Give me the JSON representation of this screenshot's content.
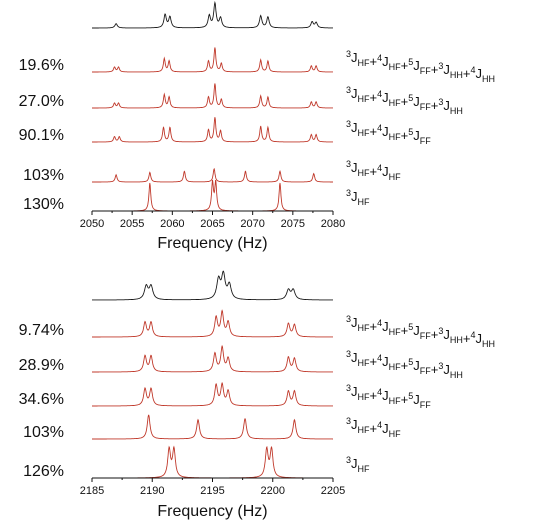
{
  "colors": {
    "experimental": "#1a1a1a",
    "simulated": "#c0392b",
    "axis": "#111111"
  },
  "chart_data": [
    {
      "type": "line",
      "xlabel": "Frequency (Hz)",
      "xlim": [
        2050,
        2080
      ],
      "xticks": [
        "2050",
        "2055",
        "2060",
        "2065",
        "2070",
        "2075",
        "2080"
      ],
      "grid": false,
      "series": [
        {
          "role": "experimental",
          "label": "",
          "coupling": [],
          "peaks": [
            [
              2053.0,
              0.18
            ],
            [
              2059.1,
              0.55
            ],
            [
              2059.7,
              0.45
            ],
            [
              2064.6,
              0.5
            ],
            [
              2065.3,
              1.0
            ],
            [
              2066.0,
              0.4
            ],
            [
              2071.0,
              0.5
            ],
            [
              2071.9,
              0.45
            ],
            [
              2077.4,
              0.25
            ],
            [
              2077.9,
              0.22
            ]
          ]
        },
        {
          "role": "simulated",
          "label": "19.6%",
          "coupling": [
            [
              {
                "s": "3",
                "t": "J",
                "b": "HF"
              },
              {
                "s": "4",
                "t": "J",
                "b": "HF"
              },
              {
                "s": "5",
                "t": "J",
                "b": "FF"
              },
              {
                "s": "3",
                "t": "J",
                "b": "HH"
              },
              {
                "s": "4",
                "t": "J",
                "b": "HH"
              }
            ]
          ],
          "peaks": [
            [
              2052.8,
              0.2
            ],
            [
              2053.3,
              0.2
            ],
            [
              2059.0,
              0.55
            ],
            [
              2059.6,
              0.45
            ],
            [
              2064.5,
              0.45
            ],
            [
              2065.3,
              1.0
            ],
            [
              2066.1,
              0.35
            ],
            [
              2071.0,
              0.5
            ],
            [
              2071.9,
              0.45
            ],
            [
              2077.3,
              0.25
            ],
            [
              2077.9,
              0.25
            ]
          ]
        },
        {
          "role": "simulated",
          "label": "27.0%",
          "coupling": [
            [
              {
                "s": "3",
                "t": "J",
                "b": "HF"
              },
              {
                "s": "4",
                "t": "J",
                "b": "HF"
              },
              {
                "s": "5",
                "t": "J",
                "b": "FF"
              },
              {
                "s": "3",
                "t": "J",
                "b": "HH"
              }
            ]
          ],
          "peaks": [
            [
              2052.8,
              0.2
            ],
            [
              2053.3,
              0.2
            ],
            [
              2059.0,
              0.55
            ],
            [
              2059.6,
              0.45
            ],
            [
              2064.5,
              0.45
            ],
            [
              2065.3,
              1.0
            ],
            [
              2066.1,
              0.35
            ],
            [
              2071.0,
              0.5
            ],
            [
              2071.9,
              0.45
            ],
            [
              2077.3,
              0.25
            ],
            [
              2077.9,
              0.25
            ]
          ]
        },
        {
          "role": "simulated",
          "label": "90.1%",
          "coupling": [
            [
              {
                "s": "3",
                "t": "J",
                "b": "HF"
              },
              {
                "s": "4",
                "t": "J",
                "b": "HF"
              },
              {
                "s": "5",
                "t": "J",
                "b": "FF"
              }
            ]
          ],
          "peaks": [
            [
              2052.8,
              0.22
            ],
            [
              2053.4,
              0.22
            ],
            [
              2058.9,
              0.6
            ],
            [
              2059.7,
              0.6
            ],
            [
              2064.5,
              0.5
            ],
            [
              2065.3,
              1.0
            ],
            [
              2066.0,
              0.45
            ],
            [
              2071.0,
              0.65
            ],
            [
              2071.9,
              0.6
            ],
            [
              2077.3,
              0.3
            ],
            [
              2077.9,
              0.3
            ]
          ]
        },
        {
          "role": "simulated",
          "label": "103%",
          "coupling": [
            [
              {
                "s": "3",
                "t": "J",
                "b": "HF"
              },
              {
                "s": "4",
                "t": "J",
                "b": "HF"
              }
            ]
          ],
          "peaks": [
            [
              2053.0,
              0.3
            ],
            [
              2057.2,
              0.4
            ],
            [
              2061.5,
              0.45
            ],
            [
              2065.2,
              0.55
            ],
            [
              2069.1,
              0.45
            ],
            [
              2073.4,
              0.45
            ],
            [
              2077.6,
              0.35
            ]
          ]
        },
        {
          "role": "simulated",
          "label": "130%",
          "coupling": [
            [
              {
                "s": "3",
                "t": "J",
                "b": "HF"
              }
            ]
          ],
          "peaks": [
            [
              2057.2,
              1.0
            ],
            [
              2065.0,
              1.0
            ],
            [
              2065.4,
              1.0
            ],
            [
              2073.4,
              1.0
            ]
          ]
        }
      ]
    },
    {
      "type": "line",
      "xlabel": "Frequency (Hz)",
      "xlim": [
        2185,
        2205
      ],
      "xticks": [
        "2185",
        "2190",
        "2195",
        "2200",
        "2205"
      ],
      "grid": false,
      "series": [
        {
          "role": "experimental",
          "label": "",
          "coupling": [],
          "peaks": [
            [
              2189.5,
              0.55
            ],
            [
              2189.9,
              0.55
            ],
            [
              2195.5,
              0.8
            ],
            [
              2195.9,
              1.0
            ],
            [
              2196.4,
              0.6
            ],
            [
              2201.3,
              0.4
            ],
            [
              2201.7,
              0.4
            ]
          ]
        },
        {
          "role": "simulated",
          "label": "9.74%",
          "coupling": [
            [
              {
                "s": "3",
                "t": "J",
                "b": "HF"
              },
              {
                "s": "4",
                "t": "J",
                "b": "HF"
              },
              {
                "s": "5",
                "t": "J",
                "b": "FF"
              },
              {
                "s": "3",
                "t": "J",
                "b": "HH"
              },
              {
                "s": "4",
                "t": "J",
                "b": "HH"
              }
            ]
          ],
          "peaks": [
            [
              2189.4,
              0.6
            ],
            [
              2189.9,
              0.6
            ],
            [
              2195.3,
              0.8
            ],
            [
              2195.8,
              1.0
            ],
            [
              2196.3,
              0.6
            ],
            [
              2201.3,
              0.55
            ],
            [
              2201.8,
              0.5
            ]
          ]
        },
        {
          "role": "simulated",
          "label": "28.9%",
          "coupling": [
            [
              {
                "s": "3",
                "t": "J",
                "b": "HF"
              },
              {
                "s": "4",
                "t": "J",
                "b": "HF"
              },
              {
                "s": "5",
                "t": "J",
                "b": "FF"
              },
              {
                "s": "3",
                "t": "J",
                "b": "HH"
              }
            ]
          ],
          "peaks": [
            [
              2189.4,
              0.65
            ],
            [
              2189.9,
              0.65
            ],
            [
              2195.2,
              0.75
            ],
            [
              2195.8,
              1.0
            ],
            [
              2196.3,
              0.55
            ],
            [
              2201.3,
              0.6
            ],
            [
              2201.8,
              0.55
            ]
          ]
        },
        {
          "role": "simulated",
          "label": "34.6%",
          "coupling": [
            [
              {
                "s": "3",
                "t": "J",
                "b": "HF"
              },
              {
                "s": "4",
                "t": "J",
                "b": "HF"
              },
              {
                "s": "5",
                "t": "J",
                "b": "FF"
              }
            ]
          ],
          "peaks": [
            [
              2189.4,
              0.7
            ],
            [
              2189.9,
              0.7
            ],
            [
              2195.3,
              0.85
            ],
            [
              2195.8,
              0.85
            ],
            [
              2196.3,
              0.6
            ],
            [
              2201.3,
              0.6
            ],
            [
              2201.8,
              0.6
            ]
          ]
        },
        {
          "role": "simulated",
          "label": "103%",
          "coupling": [
            [
              {
                "s": "3",
                "t": "J",
                "b": "HF"
              },
              {
                "s": "4",
                "t": "J",
                "b": "HF"
              }
            ]
          ],
          "peaks": [
            [
              2189.7,
              1.0
            ],
            [
              2193.8,
              0.8
            ],
            [
              2197.7,
              0.85
            ],
            [
              2201.8,
              0.8
            ]
          ]
        },
        {
          "role": "simulated",
          "label": "126%",
          "coupling": [
            [
              {
                "s": "3",
                "t": "J",
                "b": "HF"
              }
            ]
          ],
          "peaks": [
            [
              2191.4,
              1.0
            ],
            [
              2191.8,
              1.0
            ],
            [
              2199.5,
              1.0
            ],
            [
              2199.9,
              1.0
            ]
          ]
        }
      ]
    }
  ]
}
